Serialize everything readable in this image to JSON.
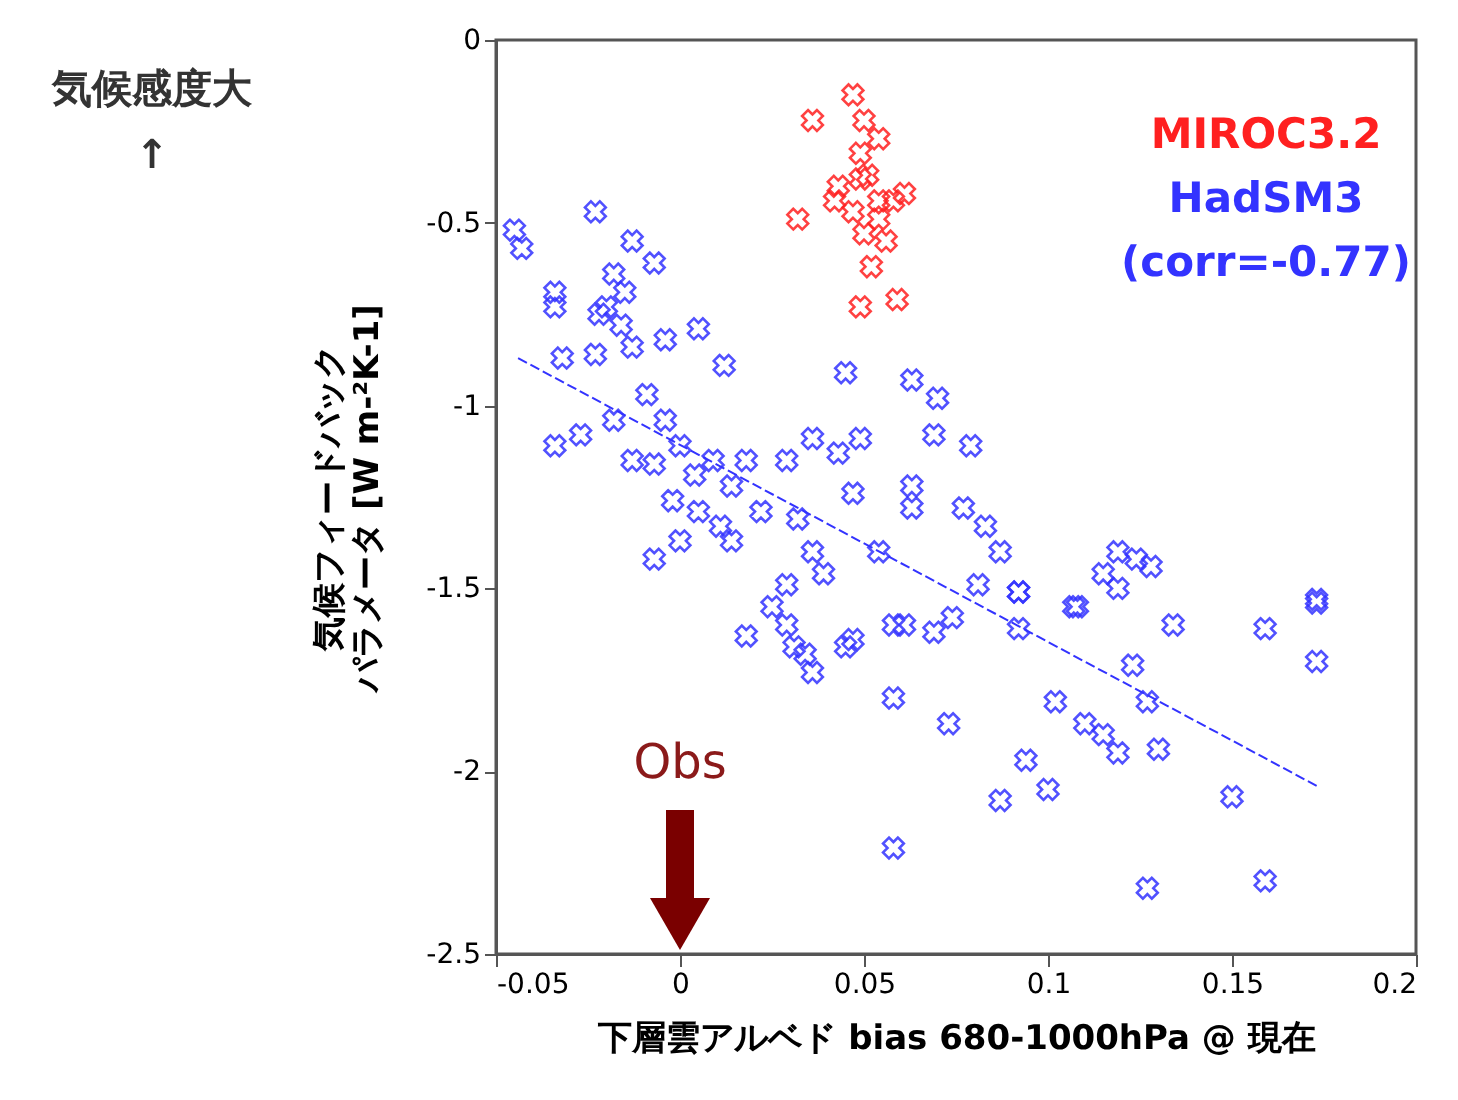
{
  "chart_data": {
    "type": "scatter",
    "xlabel": "下層雲アルベド bias 680-1000hPa @ 現在",
    "ylabel": "気候フィードバックパラメータ [W m-²K-1]",
    "xlim": [
      -0.05,
      0.2
    ],
    "xticks": [
      -0.05,
      0,
      0.05,
      0.1,
      0.15,
      0.2
    ],
    "ylim": [
      -2.5,
      0
    ],
    "yticks": [
      -2.5,
      -2,
      -1.5,
      -1,
      -0.5,
      0
    ],
    "grid": false,
    "legend": "top right",
    "annotations": [
      "気候感度大",
      "↑",
      "(corr=-0.77)",
      "Obs"
    ],
    "series": [
      {
        "name": "MIROC3.2",
        "color": "#ff2020",
        "marker": "cross",
        "x": [
          0.036,
          0.047,
          0.05,
          0.049,
          0.051,
          0.032,
          0.042,
          0.054,
          0.058,
          0.047,
          0.05,
          0.056,
          0.052,
          0.059,
          0.049,
          0.043,
          0.061,
          0.054,
          0.049,
          0.054
        ],
        "values": [
          -0.22,
          -0.15,
          -0.22,
          -0.31,
          -0.37,
          -0.49,
          -0.44,
          -0.44,
          -0.44,
          -0.47,
          -0.53,
          -0.55,
          -0.62,
          -0.71,
          -0.73,
          -0.4,
          -0.42,
          -0.27,
          -0.38,
          -0.49
        ]
      },
      {
        "name": "HadSM3",
        "color": "#3333ff",
        "marker": "cross",
        "x": [
          -0.045,
          -0.043,
          -0.034,
          -0.023,
          -0.013,
          -0.007,
          -0.018,
          -0.015,
          -0.02,
          -0.034,
          -0.022,
          -0.016,
          -0.032,
          -0.023,
          -0.013,
          -0.004,
          0.005,
          0.012,
          0.045,
          0.063,
          0.07,
          -0.034,
          -0.027,
          -0.018,
          -0.009,
          -0.004,
          0.0,
          -0.007,
          -0.013,
          0.004,
          0.009,
          0.014,
          0.018,
          -0.002,
          0.005,
          0.011,
          -0.007,
          0.0,
          0.014,
          0.022,
          0.029,
          0.036,
          0.043,
          0.049,
          0.032,
          0.036,
          0.039,
          0.047,
          0.063,
          0.063,
          0.069,
          0.079,
          0.077,
          0.083,
          0.087,
          0.054,
          0.029,
          0.119,
          0.124,
          0.115,
          0.128,
          0.092,
          0.173,
          0.108,
          0.018,
          0.025,
          0.029,
          0.031,
          0.036,
          0.034,
          0.047,
          0.045,
          0.058,
          0.061,
          0.069,
          0.074,
          0.081,
          0.092,
          0.092,
          0.107,
          0.119,
          0.134,
          0.159,
          0.173,
          0.173,
          0.123,
          0.058,
          0.073,
          0.102,
          0.11,
          0.115,
          0.119,
          0.127,
          0.13,
          0.094,
          0.1,
          0.087,
          0.15,
          0.058,
          0.127,
          0.159
        ],
        "values": [
          -0.52,
          -0.57,
          -0.69,
          -0.47,
          -0.55,
          -0.61,
          -0.64,
          -0.69,
          -0.73,
          -0.73,
          -0.75,
          -0.78,
          -0.87,
          -0.86,
          -0.84,
          -0.82,
          -0.79,
          -0.89,
          -0.91,
          -0.93,
          -0.98,
          -1.11,
          -1.08,
          -1.04,
          -0.97,
          -1.04,
          -1.11,
          -1.16,
          -1.15,
          -1.19,
          -1.15,
          -1.22,
          -1.15,
          -1.26,
          -1.29,
          -1.33,
          -1.42,
          -1.37,
          -1.37,
          -1.29,
          -1.15,
          -1.09,
          -1.13,
          -1.09,
          -1.31,
          -1.4,
          -1.46,
          -1.24,
          -1.22,
          -1.28,
          -1.08,
          -1.11,
          -1.28,
          -1.33,
          -1.4,
          -1.4,
          -1.49,
          -1.4,
          -1.42,
          -1.46,
          -1.44,
          -1.51,
          -1.53,
          -1.55,
          -1.63,
          -1.55,
          -1.6,
          -1.66,
          -1.73,
          -1.68,
          -1.64,
          -1.66,
          -1.6,
          -1.6,
          -1.62,
          -1.58,
          -1.49,
          -1.51,
          -1.61,
          -1.55,
          -1.5,
          -1.6,
          -1.61,
          -1.54,
          -1.7,
          -1.71,
          -1.8,
          -1.87,
          -1.81,
          -1.87,
          -1.9,
          -1.95,
          -1.81,
          -1.94,
          -1.97,
          -2.05,
          -2.08,
          -2.07,
          -2.21,
          -2.32,
          -2.3
        ]
      },
      {
        "type": "line",
        "color": "#3333ff",
        "line_style": "dashed",
        "x": [
          -0.044,
          0.173
        ],
        "values": [
          -0.87,
          -2.04
        ]
      }
    ]
  }
}
